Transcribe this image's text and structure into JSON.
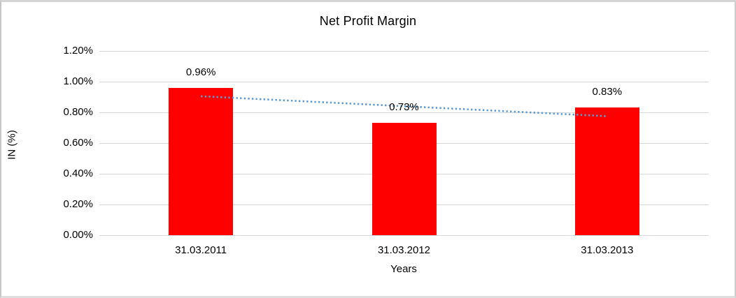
{
  "chart_data": {
    "type": "bar",
    "title": "Net Profit Margin",
    "xlabel": "Years",
    "ylabel": "IN (%)",
    "categories": [
      "31.03.2011",
      "31.03.2012",
      "31.03.2013"
    ],
    "values": [
      0.96,
      0.73,
      0.83
    ],
    "data_labels": [
      "0.96%",
      "0.73%",
      "0.83%"
    ],
    "y_tick_values": [
      0,
      0.2,
      0.4,
      0.6,
      0.8,
      1.0,
      1.2
    ],
    "y_tick_labels": [
      "0.00%",
      "0.20%",
      "0.40%",
      "0.60%",
      "0.80%",
      "1.00%",
      "1.20%"
    ],
    "ylim": [
      0,
      1.2
    ],
    "grid": "horizontal",
    "legend": "none",
    "colors": {
      "bar": "#FF0000",
      "gridline": "#D9D9D9",
      "text": "#000000",
      "trendline": "#5B9BD5"
    },
    "trendline": {
      "type": "linear",
      "style": "dotted",
      "color": "#5B9BD5",
      "start_category": "31.03.2011",
      "end_category": "31.03.2013",
      "start_value": 0.905,
      "end_value": 0.775
    }
  }
}
